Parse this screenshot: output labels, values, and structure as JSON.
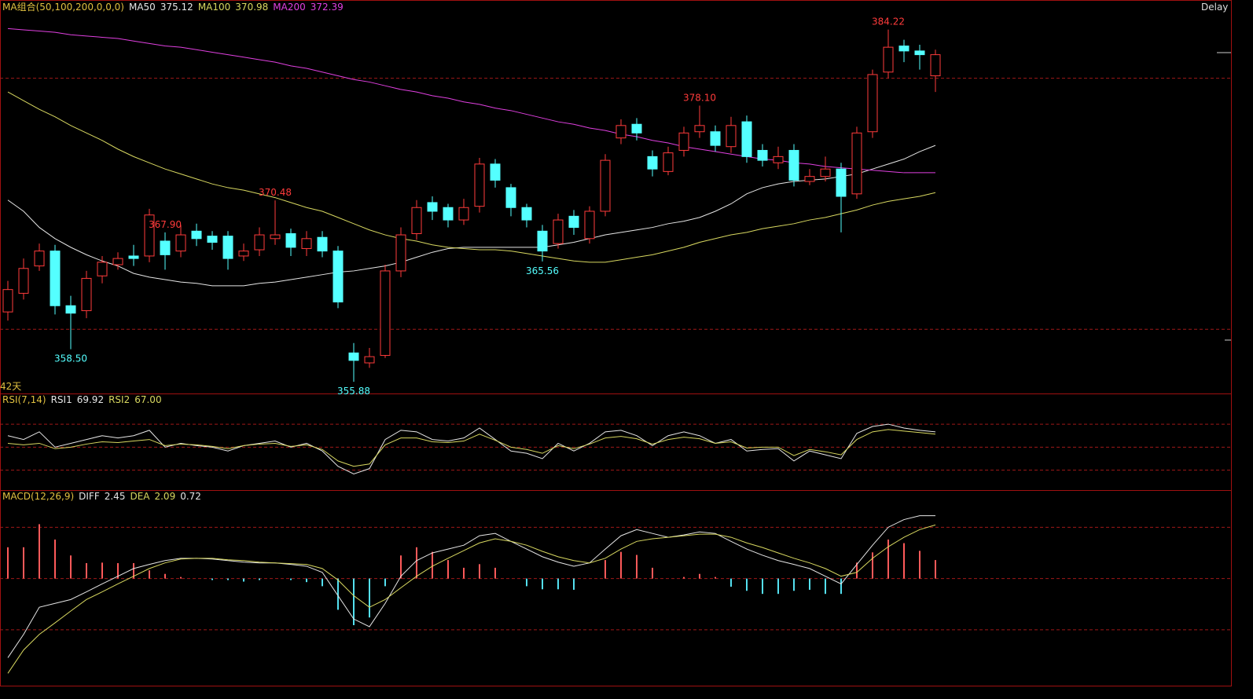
{
  "chart_data": [
    {
      "type": "candlestick",
      "title": "MA组合(50,100,200,0,0,0)",
      "period_label": "42天",
      "status": "Delay",
      "ylim": [
        355.0,
        386.6
      ],
      "levels": [
        380.3,
        360.1
      ],
      "candles": [
        [
          361.5,
          364.0,
          360.8,
          363.3
        ],
        [
          363.0,
          365.8,
          362.5,
          365.0
        ],
        [
          365.2,
          367.0,
          364.8,
          366.4
        ],
        [
          366.4,
          366.9,
          361.3,
          362.0
        ],
        [
          362.0,
          362.8,
          358.5,
          361.4
        ],
        [
          361.6,
          364.8,
          361.0,
          364.2
        ],
        [
          364.4,
          366.0,
          363.8,
          365.5
        ],
        [
          365.3,
          366.3,
          364.9,
          365.8
        ],
        [
          366.0,
          366.9,
          365.2,
          365.8
        ],
        [
          366.0,
          369.8,
          365.5,
          369.3
        ],
        [
          367.2,
          367.9,
          364.9,
          366.1
        ],
        [
          366.4,
          368.5,
          365.9,
          367.7
        ],
        [
          368.0,
          368.6,
          366.8,
          367.4
        ],
        [
          367.6,
          368.0,
          366.5,
          367.1
        ],
        [
          367.6,
          368.0,
          364.9,
          365.8
        ],
        [
          366.0,
          367.0,
          365.6,
          366.4
        ],
        [
          366.5,
          368.3,
          366.0,
          367.7
        ],
        [
          367.4,
          370.48,
          366.9,
          367.7
        ],
        [
          367.8,
          368.2,
          366.0,
          366.7
        ],
        [
          366.6,
          368.0,
          366.0,
          367.4
        ],
        [
          367.5,
          368.0,
          365.9,
          366.4
        ],
        [
          366.4,
          366.8,
          361.8,
          362.3
        ],
        [
          358.2,
          359.0,
          355.88,
          357.6
        ],
        [
          357.4,
          358.6,
          357.0,
          357.9
        ],
        [
          358.0,
          365.3,
          357.8,
          364.8
        ],
        [
          364.8,
          368.3,
          364.3,
          367.7
        ],
        [
          367.8,
          370.5,
          367.3,
          369.9
        ],
        [
          370.3,
          370.8,
          368.9,
          369.6
        ],
        [
          369.9,
          370.2,
          368.3,
          368.9
        ],
        [
          368.9,
          370.6,
          368.5,
          369.9
        ],
        [
          370.0,
          373.9,
          369.5,
          373.4
        ],
        [
          373.4,
          373.8,
          371.5,
          372.1
        ],
        [
          371.5,
          371.8,
          369.2,
          369.9
        ],
        [
          369.9,
          370.2,
          368.3,
          368.9
        ],
        [
          368.0,
          368.5,
          365.56,
          366.4
        ],
        [
          367.0,
          369.4,
          366.6,
          368.9
        ],
        [
          369.2,
          369.7,
          367.7,
          368.3
        ],
        [
          367.4,
          370.0,
          367.0,
          369.6
        ],
        [
          369.6,
          374.2,
          369.2,
          373.7
        ],
        [
          375.5,
          377.0,
          375.0,
          376.5
        ],
        [
          376.6,
          377.1,
          375.3,
          375.9
        ],
        [
          374.0,
          374.5,
          372.4,
          373.0
        ],
        [
          372.8,
          374.8,
          372.5,
          374.3
        ],
        [
          374.5,
          376.4,
          374.0,
          375.9
        ],
        [
          376.0,
          378.1,
          375.5,
          376.5
        ],
        [
          376.0,
          376.5,
          374.4,
          374.9
        ],
        [
          374.8,
          377.2,
          374.3,
          376.5
        ],
        [
          376.8,
          377.3,
          373.5,
          374.0
        ],
        [
          374.5,
          375.0,
          373.2,
          373.7
        ],
        [
          373.5,
          374.8,
          373.0,
          374.0
        ],
        [
          374.5,
          375.0,
          371.6,
          372.1
        ],
        [
          372.0,
          373.0,
          371.7,
          372.4
        ],
        [
          372.4,
          374.0,
          372.0,
          373.0
        ],
        [
          373.0,
          373.5,
          367.9,
          370.8
        ],
        [
          371.0,
          376.4,
          370.6,
          375.9
        ],
        [
          376.0,
          381.0,
          375.5,
          380.6
        ],
        [
          380.8,
          384.22,
          380.3,
          382.8
        ],
        [
          382.9,
          383.4,
          381.6,
          382.5
        ],
        [
          382.5,
          383.0,
          381.0,
          382.2
        ],
        [
          380.5,
          382.6,
          379.2,
          382.2
        ]
      ],
      "up_color": "#ff3b3b",
      "down_color": "#54ffff",
      "annotations": [
        {
          "value": 358.5,
          "label": "358.50"
        },
        370.48,
        355.88,
        365.56,
        {
          "value": 378.1,
          "label": "378.10"
        },
        {
          "value": 367.9,
          "label": "367.90"
        },
        384.22
      ],
      "series": [
        {
          "name": "MA50",
          "value_label": "375.12",
          "color": "#e6e6e6",
          "values": [
            370.5,
            369.6,
            368.3,
            367.4,
            366.7,
            366.1,
            365.6,
            365.2,
            364.6,
            364.3,
            364.1,
            363.9,
            363.8,
            363.6,
            363.6,
            363.6,
            363.8,
            363.9,
            364.1,
            364.3,
            364.5,
            364.7,
            364.8,
            365.0,
            365.2,
            365.5,
            365.9,
            366.3,
            366.6,
            366.7,
            366.7,
            366.7,
            366.7,
            366.7,
            366.7,
            366.9,
            367.1,
            367.4,
            367.7,
            367.9,
            368.1,
            368.3,
            368.6,
            368.8,
            369.1,
            369.6,
            370.2,
            371.0,
            371.5,
            371.8,
            372.0,
            372.1,
            372.2,
            372.4,
            372.6,
            373.0,
            373.4,
            373.8,
            374.4,
            374.9
          ]
        },
        {
          "name": "MA100",
          "value_label": "370.98",
          "color": "#d8d860",
          "values": [
            379.2,
            378.5,
            377.8,
            377.2,
            376.5,
            375.9,
            375.3,
            374.6,
            374.0,
            373.5,
            373.0,
            372.6,
            372.2,
            371.8,
            371.5,
            371.3,
            371.0,
            370.7,
            370.3,
            369.9,
            369.6,
            369.1,
            368.6,
            368.1,
            367.7,
            367.4,
            367.2,
            366.9,
            366.7,
            366.6,
            366.5,
            366.5,
            366.4,
            366.2,
            366.0,
            365.8,
            365.6,
            365.5,
            365.5,
            365.7,
            365.9,
            366.1,
            366.4,
            366.7,
            367.1,
            367.4,
            367.7,
            367.9,
            368.2,
            368.4,
            368.6,
            368.9,
            369.1,
            369.4,
            369.7,
            370.1,
            370.4,
            370.6,
            370.8,
            371.1
          ]
        },
        {
          "name": "MA200",
          "value_label": "372.39",
          "color": "#e040e0",
          "values": [
            384.3,
            384.2,
            384.1,
            384.0,
            383.8,
            383.7,
            383.6,
            383.5,
            383.3,
            383.1,
            382.9,
            382.8,
            382.6,
            382.4,
            382.2,
            382.0,
            381.8,
            381.6,
            381.3,
            381.1,
            380.8,
            380.5,
            380.2,
            380.0,
            379.7,
            379.4,
            379.2,
            378.9,
            378.7,
            378.4,
            378.2,
            377.9,
            377.7,
            377.4,
            377.1,
            376.8,
            376.6,
            376.3,
            376.1,
            375.8,
            375.6,
            375.3,
            375.1,
            374.8,
            374.6,
            374.4,
            374.2,
            374.0,
            373.8,
            373.7,
            373.5,
            373.4,
            373.2,
            373.1,
            373.0,
            372.9,
            372.8,
            372.7,
            372.7,
            372.7
          ]
        }
      ]
    },
    {
      "type": "line",
      "title": "RSI(7,14)",
      "ylim": [
        -5,
        118
      ],
      "levels": [
        20,
        50,
        80
      ],
      "series": [
        {
          "name": "RSI1",
          "value_label": "69.92",
          "color": "#e6e6e6",
          "values": [
            65,
            60,
            70,
            50,
            55,
            60,
            65,
            62,
            65,
            72,
            50,
            55,
            52,
            50,
            45,
            52,
            55,
            58,
            50,
            55,
            45,
            25,
            15,
            22,
            60,
            72,
            70,
            60,
            58,
            62,
            75,
            60,
            45,
            42,
            35,
            55,
            45,
            55,
            70,
            72,
            65,
            52,
            65,
            70,
            65,
            55,
            60,
            45,
            47,
            48,
            32,
            45,
            40,
            35,
            68,
            77,
            80,
            75,
            72,
            69.92
          ]
        },
        {
          "name": "RSI2",
          "value_label": "67.00",
          "color": "#d8d860",
          "values": [
            55,
            53,
            55,
            48,
            50,
            54,
            57,
            56,
            58,
            60,
            52,
            54,
            53,
            51,
            48,
            52,
            54,
            55,
            51,
            53,
            47,
            32,
            25,
            28,
            53,
            62,
            62,
            57,
            56,
            58,
            67,
            59,
            50,
            47,
            42,
            52,
            48,
            54,
            62,
            64,
            61,
            54,
            60,
            63,
            61,
            55,
            57,
            49,
            50,
            50,
            39,
            47,
            44,
            40,
            60,
            70,
            73,
            71,
            69,
            67
          ]
        }
      ]
    },
    {
      "type": "macd",
      "title": "MACD(12,26,9)",
      "ylim": [
        -4.15,
        3.39
      ],
      "levels": [
        -2,
        0,
        2
      ],
      "series": [
        {
          "name": "DIFF",
          "value_label": "2.45",
          "color": "#e6e6e6",
          "values": [
            -3.09,
            -2.18,
            -1.12,
            -0.97,
            -0.82,
            -0.52,
            -0.21,
            0.09,
            0.39,
            0.55,
            0.7,
            0.79,
            0.79,
            0.76,
            0.7,
            0.64,
            0.61,
            0.61,
            0.55,
            0.48,
            0.24,
            -0.67,
            -1.58,
            -1.88,
            -0.97,
            0.09,
            0.7,
            1.0,
            1.15,
            1.3,
            1.67,
            1.76,
            1.45,
            1.15,
            0.85,
            0.64,
            0.48,
            0.61,
            1.15,
            1.67,
            1.91,
            1.76,
            1.61,
            1.7,
            1.82,
            1.76,
            1.45,
            1.15,
            0.91,
            0.7,
            0.55,
            0.39,
            0.09,
            -0.21,
            0.55,
            1.3,
            2.0,
            2.3,
            2.45,
            2.45
          ]
        },
        {
          "name": "DEA",
          "value_label": "2.09",
          "color": "#d8d860",
          "values": [
            -3.7,
            -2.79,
            -2.18,
            -1.73,
            -1.27,
            -0.82,
            -0.52,
            -0.21,
            0.09,
            0.39,
            0.61,
            0.76,
            0.79,
            0.79,
            0.73,
            0.7,
            0.64,
            0.61,
            0.58,
            0.55,
            0.39,
            -0.06,
            -0.67,
            -1.12,
            -0.82,
            -0.36,
            0.09,
            0.48,
            0.79,
            1.09,
            1.39,
            1.55,
            1.45,
            1.3,
            1.06,
            0.85,
            0.7,
            0.61,
            0.79,
            1.15,
            1.45,
            1.55,
            1.61,
            1.67,
            1.73,
            1.73,
            1.61,
            1.39,
            1.21,
            1.0,
            0.79,
            0.61,
            0.39,
            0.09,
            0.24,
            0.79,
            1.24,
            1.61,
            1.91,
            2.09
          ]
        }
      ],
      "histogram": {
        "value_label": "0.72",
        "up_color": "#ff5a5a",
        "down_color": "#54e0f0",
        "values": [
          1.22,
          1.22,
          2.12,
          1.52,
          0.9,
          0.6,
          0.62,
          0.6,
          0.6,
          0.32,
          0.18,
          0.06,
          0,
          -0.06,
          -0.06,
          -0.12,
          -0.06,
          0,
          -0.06,
          -0.14,
          -0.3,
          -1.22,
          -1.82,
          -1.52,
          -0.3,
          0.9,
          1.22,
          1.04,
          0.72,
          0.42,
          0.56,
          0.42,
          0,
          -0.3,
          -0.42,
          -0.42,
          -0.44,
          0,
          0.72,
          1.04,
          0.92,
          0.42,
          0,
          0.06,
          0.18,
          0.06,
          -0.32,
          -0.48,
          -0.6,
          -0.6,
          -0.48,
          -0.44,
          -0.6,
          -0.6,
          0.62,
          1.02,
          1.52,
          1.38,
          1.08,
          0.72
        ]
      }
    }
  ]
}
